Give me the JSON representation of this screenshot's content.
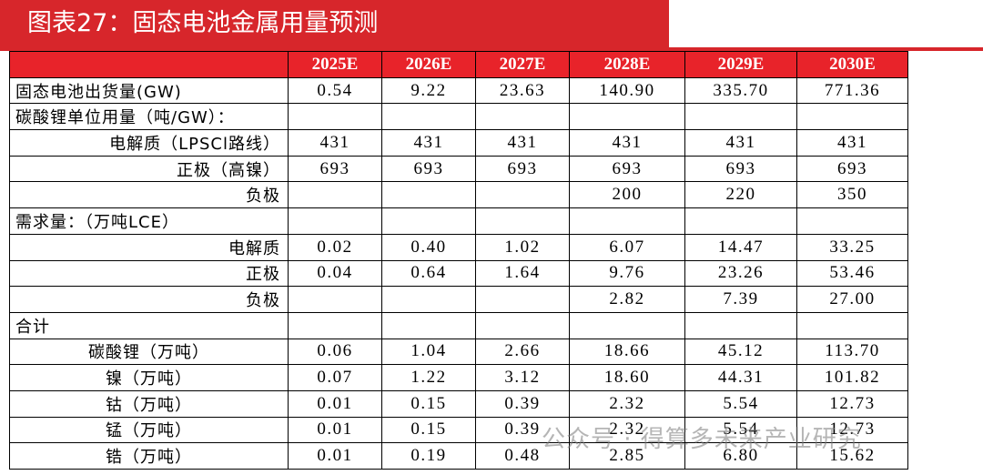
{
  "header": {
    "title": "图表27：固态电池金属用量预测"
  },
  "table": {
    "columns": [
      "2025E",
      "2026E",
      "2027E",
      "2028E",
      "2029E",
      "2030E"
    ],
    "rows": [
      {
        "label": "固态电池出货量(GW)",
        "cells": [
          "0.54",
          "9.22",
          "23.63",
          "140.90",
          "335.70",
          "771.36"
        ]
      },
      {
        "label": "碳酸锂单位用量（吨/GW）：",
        "cells": [
          null,
          null,
          null,
          null,
          null,
          null
        ]
      },
      {
        "label": "电解质（LPSCl路线）",
        "cells": [
          "431",
          "431",
          "431",
          "431",
          "431",
          "431"
        ]
      },
      {
        "label": "正极（高镍）",
        "cells": [
          "693",
          "693",
          "693",
          "693",
          "693",
          "693"
        ]
      },
      {
        "label": "负极",
        "cells": [
          null,
          null,
          null,
          "200",
          "220",
          "350"
        ]
      },
      {
        "label": "需求量：（万吨LCE）",
        "cells": [
          null,
          null,
          null,
          null,
          null,
          null
        ]
      },
      {
        "label": "电解质",
        "cells": [
          "0.02",
          "0.40",
          "1.02",
          "6.07",
          "14.47",
          "33.25"
        ]
      },
      {
        "label": "正极",
        "cells": [
          "0.04",
          "0.64",
          "1.64",
          "9.76",
          "23.26",
          "53.46"
        ]
      },
      {
        "label": "负极",
        "cells": [
          null,
          null,
          null,
          "2.82",
          "7.39",
          "27.00"
        ]
      },
      {
        "label": "合计",
        "cells": [
          null,
          null,
          null,
          null,
          null,
          null
        ]
      },
      {
        "label": "碳酸锂（万吨）",
        "cells": [
          "0.06",
          "1.04",
          "2.66",
          "18.66",
          "45.12",
          "113.70"
        ]
      },
      {
        "label": "镍（万吨）",
        "cells": [
          "0.07",
          "1.22",
          "3.12",
          "18.60",
          "44.31",
          "101.82"
        ]
      },
      {
        "label": "钴（万吨）",
        "cells": [
          "0.01",
          "0.15",
          "0.39",
          "2.32",
          "5.54",
          "12.73"
        ]
      },
      {
        "label": "锰（万吨）",
        "cells": [
          "0.01",
          "0.15",
          "0.39",
          "2.32",
          "5.54",
          "12.73"
        ]
      },
      {
        "label": "锆（万吨）",
        "cells": [
          "0.01",
          "0.19",
          "0.48",
          "2.85",
          "6.80",
          "15.62"
        ]
      }
    ]
  },
  "watermark": "公众号 · 得算多未来产业研究"
}
